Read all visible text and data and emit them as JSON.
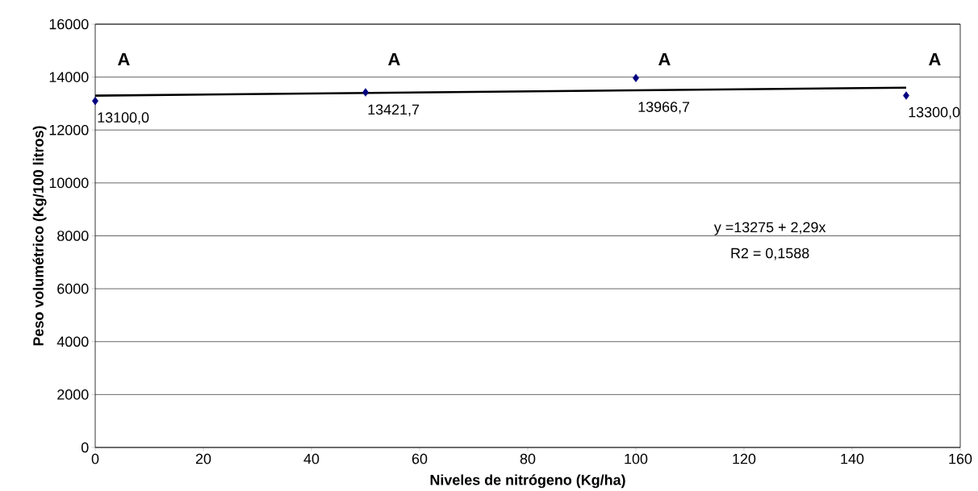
{
  "chart_data": {
    "type": "scatter",
    "xlabel": "Niveles de nitrógeno (Kg/ha)",
    "ylabel": "Peso volumétrico (Kg/100 litros)",
    "series": [
      {
        "color": "#000080",
        "marker": "diamond",
        "x": [
          0,
          50,
          100,
          150
        ],
        "values": [
          13100,
          13421.7,
          13966.7,
          13300
        ],
        "value_labels": [
          "13100,0",
          "13421,7",
          "13966,7",
          "13300,0"
        ]
      },
      {
        "type": "line",
        "color": "#000000",
        "x": [
          0,
          150
        ],
        "values": [
          13300,
          13600
        ]
      }
    ],
    "annotations": [
      "A",
      "A",
      "A",
      "A",
      "y =13275 + 2,29x",
      "R2 = 0,1588"
    ],
    "xlim": [
      0,
      160
    ],
    "ylim": [
      0,
      16000
    ],
    "xticks": [
      0,
      20,
      40,
      60,
      80,
      100,
      120,
      140,
      160
    ],
    "yticks": [
      0,
      2000,
      4000,
      6000,
      8000,
      10000,
      12000,
      14000,
      16000
    ],
    "grid": "y"
  }
}
